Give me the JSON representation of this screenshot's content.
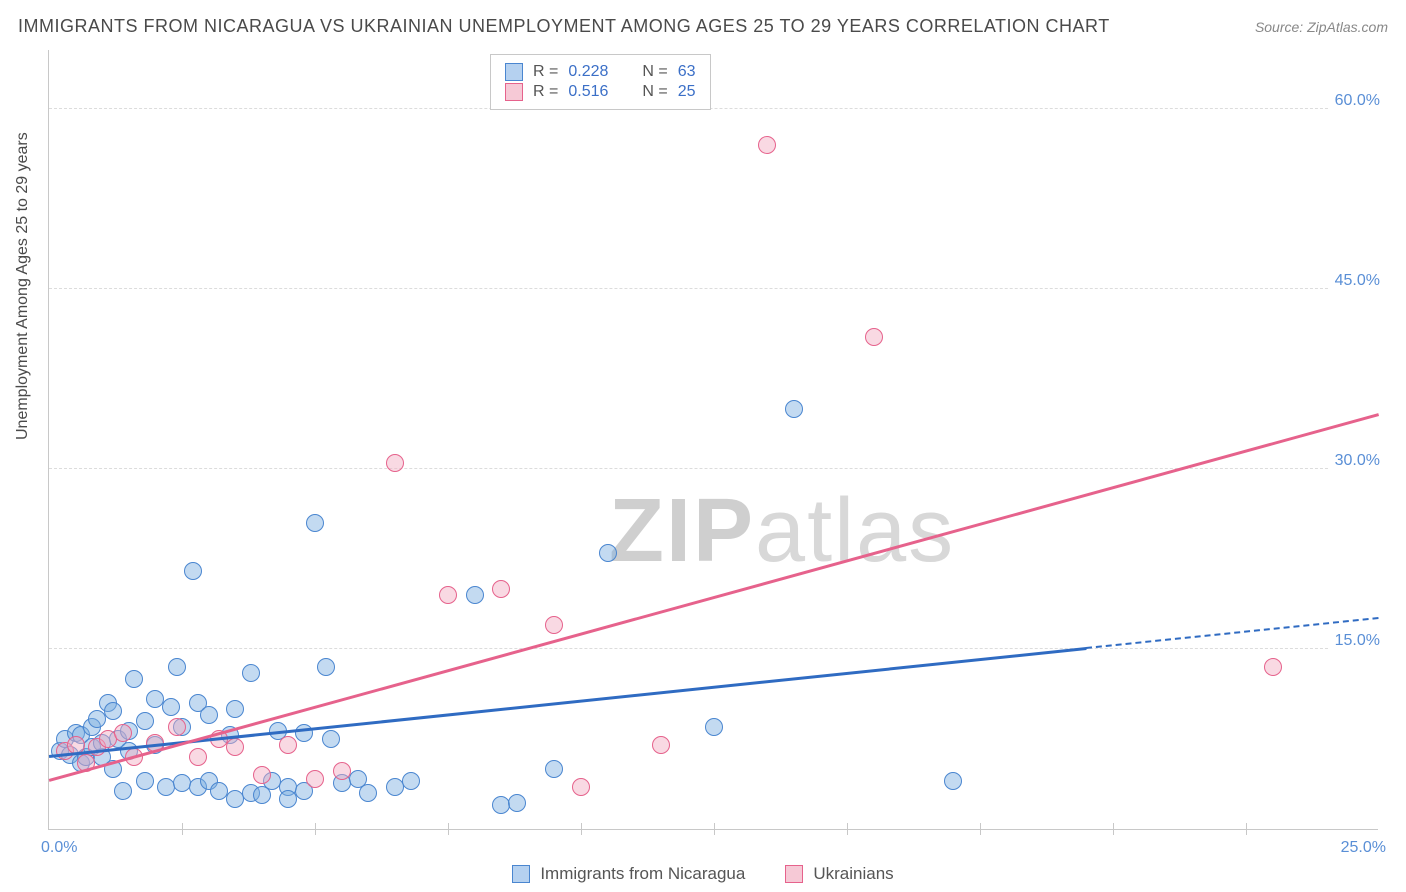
{
  "title": "IMMIGRANTS FROM NICARAGUA VS UKRAINIAN UNEMPLOYMENT AMONG AGES 25 TO 29 YEARS CORRELATION CHART",
  "source": "Source: ZipAtlas.com",
  "y_axis_label": "Unemployment Among Ages 25 to 29 years",
  "watermark_a": "ZIP",
  "watermark_b": "atlas",
  "chart": {
    "type": "scatter",
    "xlim": [
      0,
      25
    ],
    "ylim": [
      0,
      65
    ],
    "x_origin_label": "0.0%",
    "x_max_label": "25.0%",
    "y_ticks": [
      {
        "v": 15,
        "label": "15.0%"
      },
      {
        "v": 30,
        "label": "30.0%"
      },
      {
        "v": 45,
        "label": "45.0%"
      },
      {
        "v": 60,
        "label": "60.0%"
      }
    ],
    "x_tick_step": 2.5,
    "background_color": "#ffffff",
    "grid_color": "#dcdcdc",
    "axis_color": "#c8c8c8",
    "tick_label_color": "#5a8fd6",
    "point_radius": 9,
    "series": [
      {
        "name": "Immigrants from Nicaragua",
        "key": "blue",
        "fill": "rgba(122,172,224,0.45)",
        "stroke": "#4a86d0",
        "R": "0.228",
        "N": "63",
        "trend": {
          "x0": 0,
          "y0": 6.0,
          "x1": 19.5,
          "y1": 15.0,
          "dash_to_x": 25,
          "dash_to_y": 17.5,
          "color": "#2f6bc2"
        },
        "points": [
          [
            0.2,
            6.5
          ],
          [
            0.3,
            7.5
          ],
          [
            0.4,
            6.2
          ],
          [
            0.5,
            8.0
          ],
          [
            0.6,
            5.5
          ],
          [
            0.6,
            7.8
          ],
          [
            0.7,
            6.0
          ],
          [
            0.8,
            8.5
          ],
          [
            0.8,
            6.8
          ],
          [
            0.9,
            9.2
          ],
          [
            1.0,
            6.0
          ],
          [
            1.0,
            7.2
          ],
          [
            1.1,
            10.5
          ],
          [
            1.2,
            5.0
          ],
          [
            1.2,
            9.8
          ],
          [
            1.3,
            7.5
          ],
          [
            1.4,
            3.2
          ],
          [
            1.5,
            8.2
          ],
          [
            1.5,
            6.5
          ],
          [
            1.6,
            12.5
          ],
          [
            1.8,
            9.0
          ],
          [
            1.8,
            4.0
          ],
          [
            2.0,
            10.8
          ],
          [
            2.0,
            7.0
          ],
          [
            2.2,
            3.5
          ],
          [
            2.3,
            10.2
          ],
          [
            2.4,
            13.5
          ],
          [
            2.5,
            8.5
          ],
          [
            2.5,
            3.8
          ],
          [
            2.7,
            21.5
          ],
          [
            2.8,
            10.5
          ],
          [
            2.8,
            3.5
          ],
          [
            3.0,
            9.5
          ],
          [
            3.0,
            4.0
          ],
          [
            3.2,
            3.2
          ],
          [
            3.4,
            7.8
          ],
          [
            3.5,
            2.5
          ],
          [
            3.5,
            10.0
          ],
          [
            3.8,
            3.0
          ],
          [
            4.0,
            2.8
          ],
          [
            4.2,
            4.0
          ],
          [
            4.3,
            8.2
          ],
          [
            4.5,
            3.5
          ],
          [
            4.5,
            2.5
          ],
          [
            4.8,
            3.2
          ],
          [
            5.0,
            25.5
          ],
          [
            5.2,
            13.5
          ],
          [
            5.3,
            7.5
          ],
          [
            5.5,
            3.8
          ],
          [
            5.8,
            4.2
          ],
          [
            6.0,
            3.0
          ],
          [
            6.5,
            3.5
          ],
          [
            6.8,
            4.0
          ],
          [
            8.5,
            2.0
          ],
          [
            8.8,
            2.2
          ],
          [
            9.5,
            5.0
          ],
          [
            10.5,
            23.0
          ],
          [
            12.5,
            8.5
          ],
          [
            14.0,
            35.0
          ],
          [
            17.0,
            4.0
          ],
          [
            8.0,
            19.5
          ],
          [
            4.8,
            8.0
          ],
          [
            3.8,
            13.0
          ]
        ]
      },
      {
        "name": "Ukrainians",
        "key": "pink",
        "fill": "rgba(242,170,192,0.45)",
        "stroke": "#e6628c",
        "R": "0.516",
        "N": "25",
        "trend": {
          "x0": 0,
          "y0": 4.0,
          "x1": 25,
          "y1": 34.5,
          "color": "#e6628c"
        },
        "points": [
          [
            0.3,
            6.5
          ],
          [
            0.5,
            7.0
          ],
          [
            0.7,
            5.5
          ],
          [
            0.9,
            6.8
          ],
          [
            1.1,
            7.5
          ],
          [
            1.4,
            8.0
          ],
          [
            1.6,
            6.0
          ],
          [
            2.0,
            7.2
          ],
          [
            2.4,
            8.5
          ],
          [
            2.8,
            6.0
          ],
          [
            3.2,
            7.5
          ],
          [
            3.5,
            6.8
          ],
          [
            4.0,
            4.5
          ],
          [
            4.5,
            7.0
          ],
          [
            5.0,
            4.2
          ],
          [
            5.5,
            4.8
          ],
          [
            6.5,
            30.5
          ],
          [
            7.5,
            19.5
          ],
          [
            8.5,
            20.0
          ],
          [
            9.5,
            17.0
          ],
          [
            10.0,
            3.5
          ],
          [
            11.5,
            7.0
          ],
          [
            13.5,
            57.0
          ],
          [
            15.5,
            41.0
          ],
          [
            23.0,
            13.5
          ]
        ]
      }
    ]
  },
  "stats_legend": {
    "r_label": "R =",
    "n_label": "N ="
  },
  "bottom_legend": [
    {
      "swatch": "blue",
      "label": "Immigrants from Nicaragua"
    },
    {
      "swatch": "pink",
      "label": "Ukrainians"
    }
  ]
}
